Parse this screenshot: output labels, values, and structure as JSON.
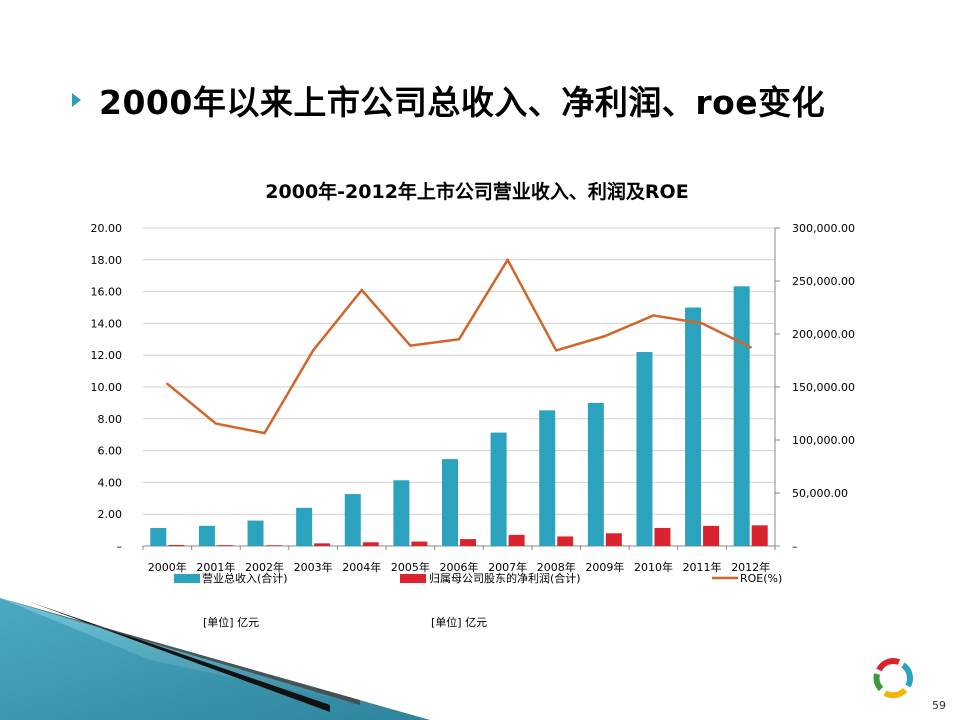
{
  "slide": {
    "title": "2000年以来上市公司总收入、净利润、roe变化",
    "page_number": "59"
  },
  "colors": {
    "revenue": "#2ba3bf",
    "profit": "#d9232e",
    "roe": "#d1652a",
    "bullet": "#2f9fb5"
  },
  "chart_data": {
    "type": "bar",
    "title": "2000年-2012年上市公司营业收入、利润及ROE",
    "categories": [
      "2000年",
      "2001年",
      "2002年",
      "2003年",
      "2004年",
      "2005年",
      "2006年",
      "2007年",
      "2008年",
      "2009年",
      "2010年",
      "2011年",
      "2012年"
    ],
    "series": [
      {
        "name": "营业总收入(合计)",
        "type": "bar",
        "axis": "right",
        "values": [
          17000,
          19000,
          24000,
          36000,
          49000,
          62000,
          82000,
          107000,
          128000,
          135000,
          183000,
          225000,
          245000
        ]
      },
      {
        "name": "归属母公司股东的净利润(合计)",
        "type": "bar",
        "axis": "right",
        "values": [
          1000,
          800,
          700,
          2500,
          3500,
          4200,
          6500,
          10500,
          9000,
          12000,
          17000,
          19000,
          19500
        ]
      },
      {
        "name": "ROE(%)",
        "type": "line",
        "axis": "left",
        "values": [
          10.2,
          7.7,
          7.1,
          12.3,
          16.1,
          12.6,
          13.0,
          18.0,
          12.3,
          13.2,
          14.5,
          14.0,
          12.5
        ]
      }
    ],
    "left_axis": {
      "range": [
        0,
        20
      ],
      "ticks": [
        "20.00",
        "18.00",
        "16.00",
        "14.00",
        "12.00",
        "10.00",
        "8.00",
        "6.00",
        "4.00",
        "2.00",
        "–"
      ]
    },
    "right_axis": {
      "range": [
        0,
        300000
      ],
      "ticks": [
        "300,000.00",
        "250,000.00",
        "200,000.00",
        "150,000.00",
        "100,000.00",
        "50,000.00",
        "–"
      ]
    },
    "grid": true,
    "legend_position": "bottom",
    "units": [
      "[单位] 亿元",
      "[单位] 亿元"
    ]
  }
}
